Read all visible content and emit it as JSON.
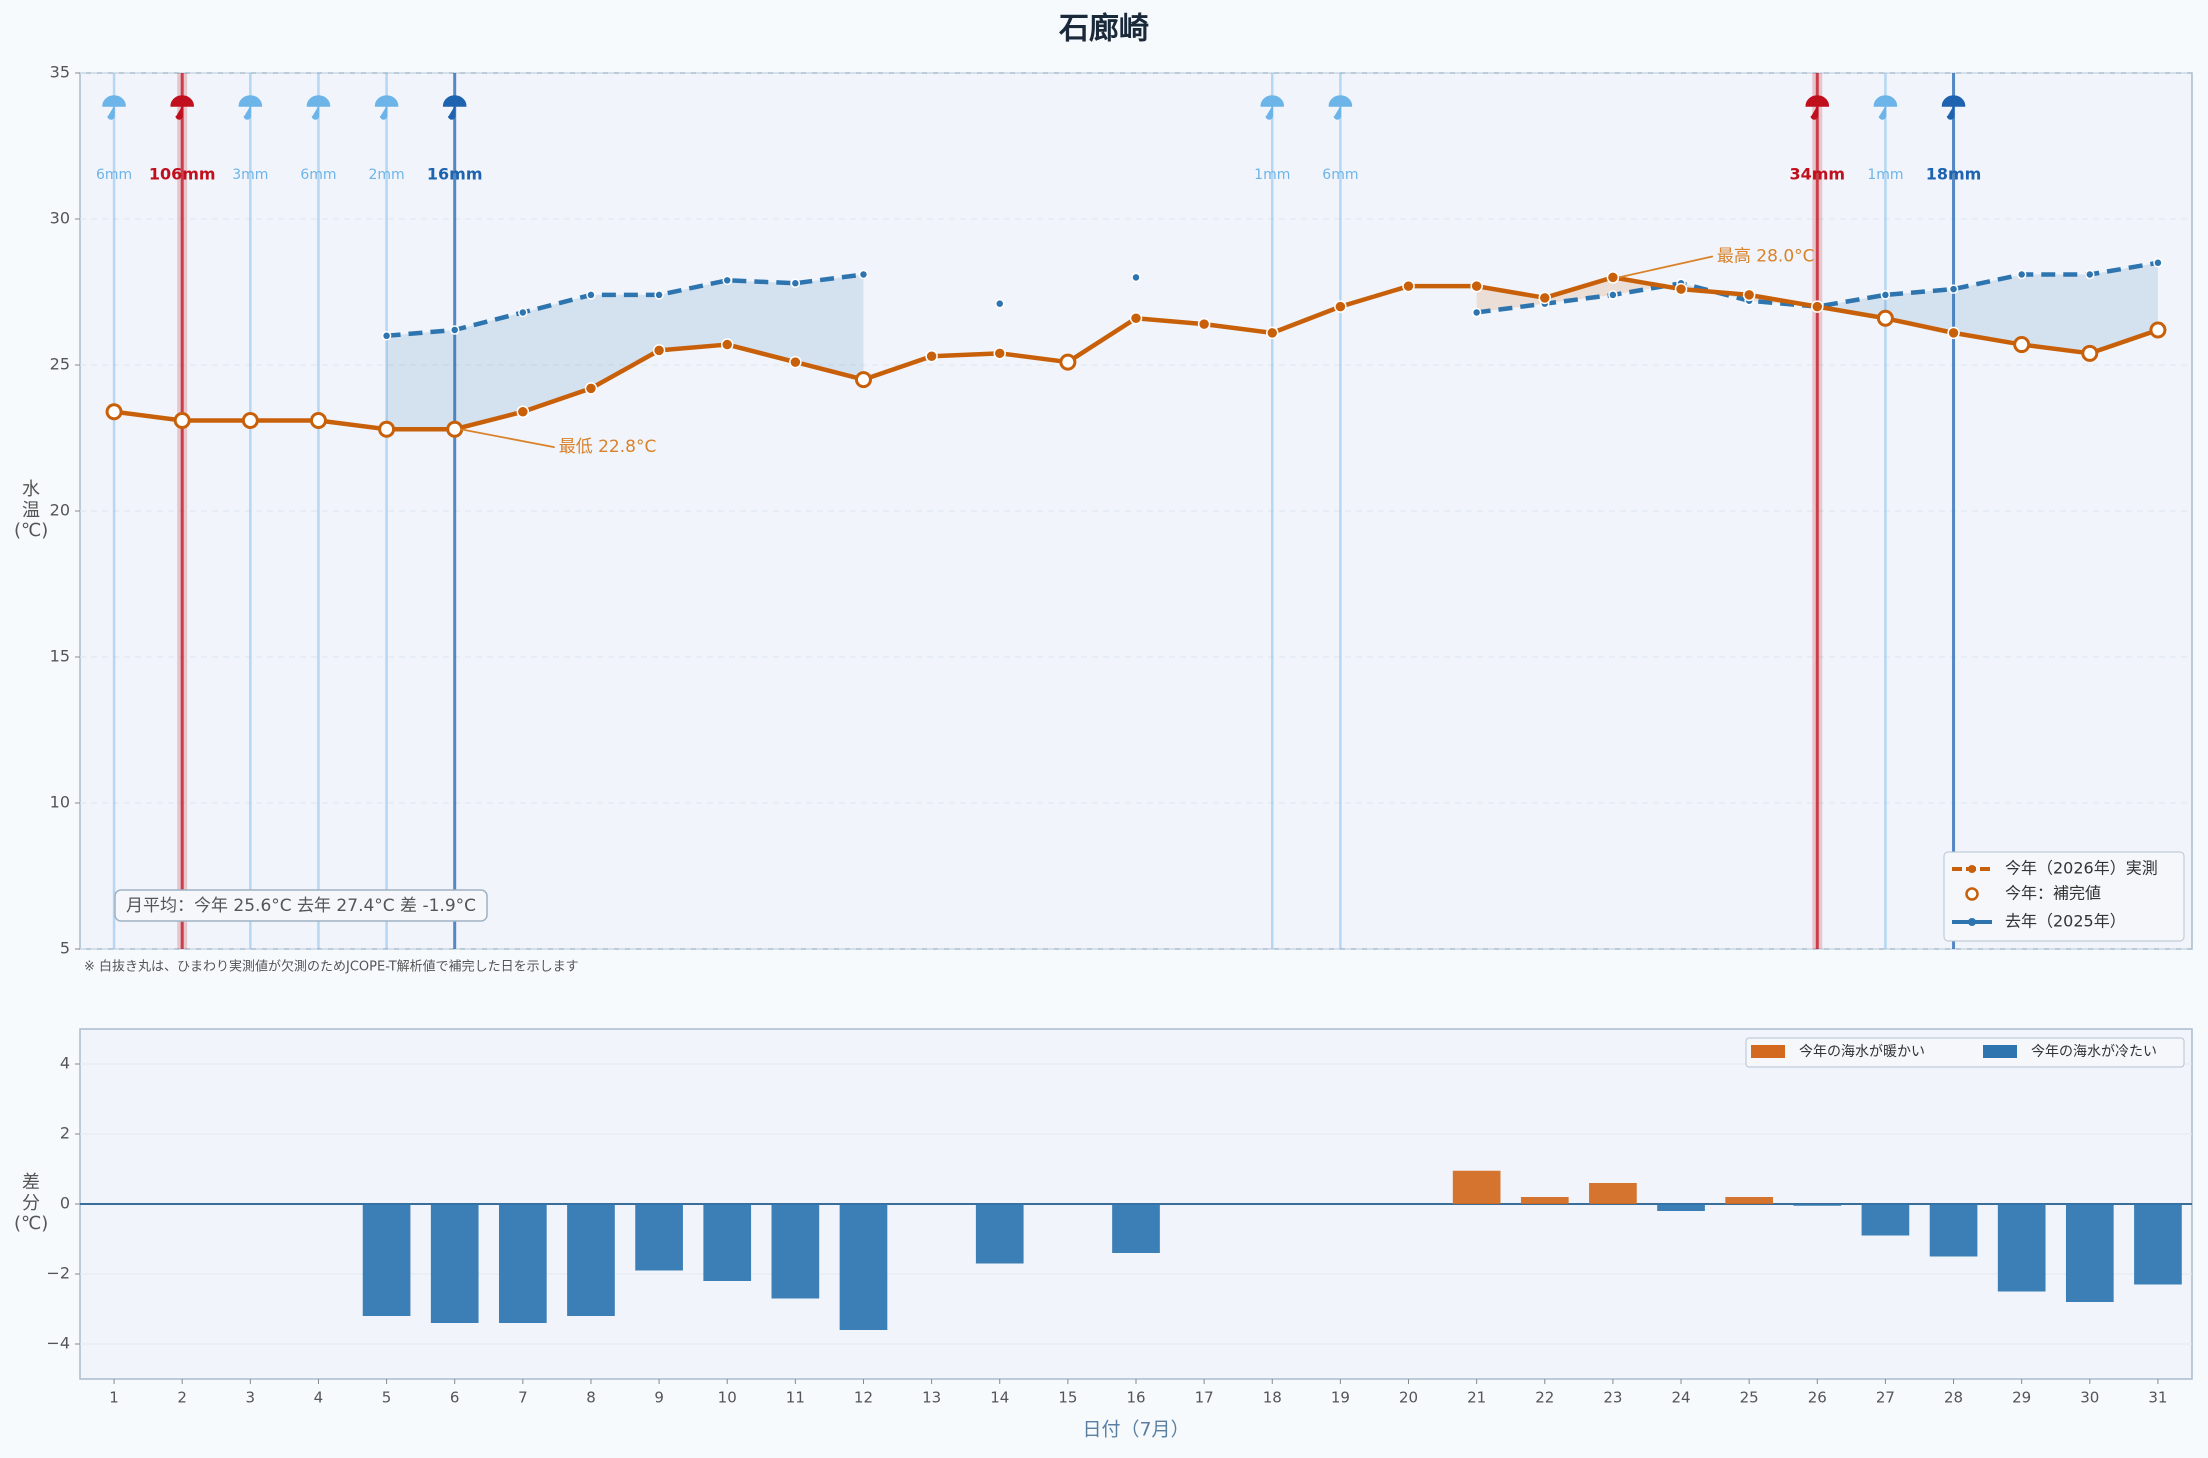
{
  "title": "石廊崎",
  "chart_data": [
    {
      "type": "line",
      "x": [
        1,
        2,
        3,
        4,
        5,
        6,
        7,
        8,
        9,
        10,
        11,
        12,
        13,
        14,
        15,
        16,
        17,
        18,
        19,
        20,
        21,
        22,
        23,
        24,
        25,
        26,
        27,
        28,
        29,
        30,
        31
      ],
      "xlim": [
        0.5,
        31.5
      ],
      "ylim": [
        5,
        35
      ],
      "yticks": [
        5,
        10,
        15,
        20,
        25,
        30,
        35
      ],
      "grid": true,
      "ylabel": "水温(℃)",
      "legend_loc": "lower right",
      "series": [
        {
          "name": "今年（2026年）実測",
          "color": "#c8600a",
          "values": [
            23.4,
            23.1,
            23.1,
            23.1,
            22.8,
            22.8,
            23.4,
            24.2,
            25.5,
            25.7,
            25.1,
            24.5,
            25.3,
            25.4,
            25.1,
            26.6,
            26.4,
            26.1,
            27.0,
            27.7,
            27.7,
            27.3,
            28.0,
            27.6,
            27.4,
            27.0,
            26.6,
            26.1,
            25.7,
            25.4,
            26.2
          ]
        },
        {
          "name": "去年（2025年）",
          "color": "#2e75b0",
          "dashed": true,
          "values": [
            null,
            null,
            null,
            null,
            26.0,
            26.2,
            26.8,
            27.4,
            27.4,
            27.9,
            27.8,
            28.1,
            null,
            27.1,
            null,
            28.0,
            null,
            null,
            null,
            null,
            26.8,
            27.1,
            27.4,
            27.8,
            27.2,
            27.0,
            27.4,
            27.6,
            28.1,
            28.1,
            28.5
          ]
        }
      ],
      "imputed": {
        "name": "今年：補完値",
        "days": [
          1,
          2,
          3,
          4,
          5,
          6,
          12,
          15,
          27,
          29,
          30,
          31
        ]
      },
      "rain": {
        "days": [
          1,
          2,
          3,
          4,
          5,
          6,
          18,
          19,
          26,
          27,
          28
        ],
        "values": [
          6,
          106,
          3,
          6,
          2,
          16,
          1,
          6,
          34,
          1,
          18
        ],
        "value_labels": [
          "6mm",
          "106mm",
          "3mm",
          "6mm",
          "2mm",
          "16mm",
          "1mm",
          "6mm",
          "34mm",
          "1mm",
          "18mm"
        ],
        "colors": [
          "#6db4e8",
          "#c0101e",
          "#6db4e8",
          "#6db4e8",
          "#6db4e8",
          "#1e63b0",
          "#6db4e8",
          "#6db4e8",
          "#c0101e",
          "#6db4e8",
          "#1e63b0"
        ]
      },
      "annotations": [
        {
          "text": "最高 28.0°C",
          "x": 23,
          "y": 28.0
        },
        {
          "text": "最低 22.8°C",
          "x": 6,
          "y": 22.8
        }
      ],
      "summary": "月平均：今年 25.6°C  去年 27.4°C  差 -1.9°C",
      "note": "※ 白抜き丸は、ひまわり実測値が欠測のためJCOPE-T解析値で補完した日を示します"
    },
    {
      "type": "bar",
      "categories": [
        "1",
        "2",
        "3",
        "4",
        "5",
        "6",
        "7",
        "8",
        "9",
        "10",
        "11",
        "12",
        "13",
        "14",
        "15",
        "16",
        "17",
        "18",
        "19",
        "20",
        "21",
        "22",
        "23",
        "24",
        "25",
        "26",
        "27",
        "28",
        "29",
        "30",
        "31"
      ],
      "values": [
        null,
        null,
        null,
        null,
        -3.2,
        -3.4,
        -3.4,
        -3.2,
        -1.9,
        -2.2,
        -2.7,
        -3.6,
        null,
        -1.7,
        null,
        -1.4,
        null,
        null,
        null,
        null,
        0.95,
        0.2,
        0.6,
        -0.2,
        0.2,
        -0.05,
        -0.9,
        -1.5,
        -2.5,
        -2.8,
        -2.3
      ],
      "ylim": [
        -5,
        5
      ],
      "yticks": [
        {
          "value": -4,
          "label": "−4"
        },
        {
          "value": -2,
          "label": "−2"
        },
        0,
        2,
        4
      ],
      "xlabel": "日付（7月）",
      "ylabel": "差分(℃)",
      "legend_loc": "upper right",
      "legend": [
        {
          "name": "今年の海水が暖かい",
          "color": "#d2691e"
        },
        {
          "name": "今年の海水が冷たい",
          "color": "#2e75b0"
        }
      ]
    }
  ]
}
